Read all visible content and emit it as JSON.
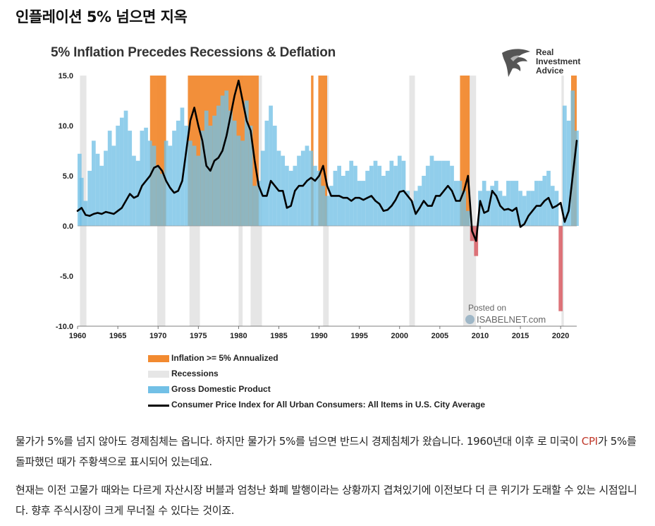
{
  "post": {
    "title": "인플레이션 5% 넘으면 지옥",
    "paragraph1": {
      "before": "물가가 5%를 넘지 않아도 경제침체는 옵니다. 하지만 물가가 5%를 넘으면 반드시 경제침체가 왔습니다. 1960년대 이후 로 미국이 ",
      "link": "CPI",
      "after": "가 5%를 돌파했던 때가 주황색으로 표시되어 있는데요."
    },
    "paragraph2": "현재는 이전 고물가 때와는 다르게 자산시장 버블과 엄청난 화폐 발행이라는 상황까지 겹쳐있기에 이전보다 더 큰 위기가 도래할 수 있는 시점입니다. 향후 주식시장이 크게 무너질 수 있다는 것이죠."
  },
  "brand": {
    "line1": "Real",
    "line2": "Investment",
    "line3": "Advice",
    "icon": "eagle-icon"
  },
  "watermark": {
    "posted": "Posted on",
    "site": "ISABELNET.com"
  },
  "colors": {
    "inflation": "#f28a30",
    "recession": "#e6e6e6",
    "gdp": "#72c0e6",
    "gdp_negative": "#d9646a",
    "cpi": "#000000",
    "zero_line": "#9a9a9a"
  },
  "chart_data": {
    "type": "area",
    "title": "5% Inflation Precedes Recessions & Deflation",
    "xlabel": "",
    "ylabel": "",
    "xlim": [
      1960,
      2022
    ],
    "ylim": [
      -10,
      15
    ],
    "xticks": [
      1960,
      1965,
      1970,
      1975,
      1980,
      1985,
      1990,
      1995,
      2000,
      2005,
      2010,
      2015,
      2020
    ],
    "yticks": [
      15,
      10,
      5,
      0,
      -5,
      -10
    ],
    "ytick_labels": [
      "15.0",
      "10.0",
      "5.0",
      "0.0",
      "-5.0",
      "-10.0"
    ],
    "grid": false,
    "legend_position": "bottom",
    "legend": [
      {
        "label": "Inflation >= 5% Annualized",
        "kind": "bar",
        "color": "#f28a30"
      },
      {
        "label": "Recessions",
        "kind": "bar",
        "color": "#e6e6e6"
      },
      {
        "label": "Gross Domestic Product",
        "kind": "bar",
        "color": "#72c0e6"
      },
      {
        "label": "Consumer Price Index for All Urban Consumers: All Items in U.S. City Average",
        "kind": "line",
        "color": "#000000"
      }
    ],
    "recessions": [
      [
        1960.3,
        1961.1
      ],
      [
        1969.9,
        1970.9
      ],
      [
        1973.9,
        1975.2
      ],
      [
        1980.0,
        1980.5
      ],
      [
        1981.5,
        1982.9
      ],
      [
        1990.5,
        1991.2
      ],
      [
        2001.2,
        2001.9
      ],
      [
        2007.9,
        2009.5
      ],
      [
        2020.1,
        2020.4
      ]
    ],
    "inflation_periods": [
      [
        1969.0,
        1971.0
      ],
      [
        1973.7,
        1982.5
      ],
      [
        1989.0,
        1989.3
      ],
      [
        1989.9,
        1991.0
      ],
      [
        2007.5,
        2008.7
      ],
      [
        2021.3,
        2022.0
      ]
    ],
    "series": [
      {
        "name": "Gross Domestic Product",
        "type": "area",
        "x": [
          1960,
          1960.5,
          1961,
          1961.5,
          1962,
          1962.5,
          1963,
          1963.5,
          1964,
          1964.5,
          1965,
          1965.5,
          1966,
          1966.5,
          1967,
          1967.5,
          1968,
          1968.5,
          1969,
          1969.5,
          1970,
          1970.5,
          1971,
          1971.5,
          1972,
          1972.5,
          1973,
          1973.5,
          1974,
          1974.5,
          1975,
          1975.5,
          1976,
          1976.5,
          1977,
          1977.5,
          1978,
          1978.5,
          1979,
          1979.5,
          1980,
          1980.5,
          1981,
          1981.5,
          1982,
          1982.5,
          1983,
          1983.5,
          1984,
          1984.5,
          1985,
          1985.5,
          1986,
          1986.5,
          1987,
          1987.5,
          1988,
          1988.5,
          1989,
          1989.5,
          1990,
          1990.5,
          1991,
          1991.5,
          1992,
          1992.5,
          1993,
          1993.5,
          1994,
          1994.5,
          1995,
          1995.5,
          1996,
          1996.5,
          1997,
          1997.5,
          1998,
          1998.5,
          1999,
          1999.5,
          2000,
          2000.5,
          2001,
          2001.5,
          2002,
          2002.5,
          2003,
          2003.5,
          2004,
          2004.5,
          2005,
          2005.5,
          2006,
          2006.5,
          2007,
          2007.5,
          2008,
          2008.5,
          2009,
          2009.5,
          2010,
          2010.5,
          2011,
          2011.5,
          2012,
          2012.5,
          2013,
          2013.5,
          2014,
          2014.5,
          2015,
          2015.5,
          2016,
          2016.5,
          2017,
          2017.5,
          2018,
          2018.5,
          2019,
          2019.5,
          2020,
          2020.5,
          2021,
          2021.5,
          2022
        ],
        "values": [
          7.2,
          4.8,
          2.5,
          5.5,
          8.5,
          7.2,
          6.0,
          7.5,
          9.5,
          8.0,
          10.0,
          10.8,
          11.5,
          9.5,
          7.0,
          6.5,
          9.5,
          9.8,
          8.5,
          8.0,
          6.0,
          5.2,
          8.5,
          8.0,
          9.5,
          10.5,
          11.8,
          10.0,
          8.5,
          8.0,
          7.0,
          9.5,
          11.5,
          10.0,
          11.0,
          12.0,
          13.0,
          13.5,
          11.5,
          10.5,
          9.0,
          8.5,
          12.5,
          10.0,
          4.0,
          4.5,
          7.5,
          10.5,
          12.0,
          10.0,
          7.5,
          7.0,
          6.0,
          5.5,
          6.0,
          7.0,
          7.5,
          8.0,
          7.5,
          6.0,
          5.5,
          4.0,
          3.0,
          4.0,
          5.5,
          6.0,
          5.0,
          5.5,
          6.5,
          6.0,
          4.5,
          4.5,
          5.5,
          6.0,
          6.5,
          6.0,
          5.0,
          5.5,
          6.5,
          6.0,
          7.0,
          6.5,
          3.5,
          2.5,
          3.5,
          4.0,
          5.0,
          6.0,
          7.0,
          6.5,
          6.5,
          6.5,
          6.5,
          6.0,
          4.5,
          4.5,
          3.5,
          1.5,
          -1.5,
          -3.0,
          3.5,
          4.5,
          3.5,
          4.0,
          4.5,
          3.5,
          3.0,
          4.5,
          4.5,
          4.5,
          3.5,
          3.0,
          3.5,
          3.5,
          4.5,
          4.5,
          5.0,
          5.5,
          4.0,
          3.5,
          -8.5,
          12.0,
          10.5,
          13.5,
          9.5
        ]
      },
      {
        "name": "Consumer Price Index for All Urban Consumers: All Items in U.S. City Average",
        "type": "line",
        "x": [
          1960,
          1960.5,
          1961,
          1961.5,
          1962,
          1962.5,
          1963,
          1963.5,
          1964,
          1964.5,
          1965,
          1965.5,
          1966,
          1966.5,
          1967,
          1967.5,
          1968,
          1968.5,
          1969,
          1969.5,
          1970,
          1970.5,
          1971,
          1971.5,
          1972,
          1972.5,
          1973,
          1973.5,
          1974,
          1974.5,
          1975,
          1975.5,
          1976,
          1976.5,
          1977,
          1977.5,
          1978,
          1978.5,
          1979,
          1979.5,
          1980,
          1980.5,
          1981,
          1981.5,
          1982,
          1982.5,
          1983,
          1983.5,
          1984,
          1984.5,
          1985,
          1985.5,
          1986,
          1986.5,
          1987,
          1987.5,
          1988,
          1988.5,
          1989,
          1989.5,
          1990,
          1990.5,
          1991,
          1991.5,
          1992,
          1992.5,
          1993,
          1993.5,
          1994,
          1994.5,
          1995,
          1995.5,
          1996,
          1996.5,
          1997,
          1997.5,
          1998,
          1998.5,
          1999,
          1999.5,
          2000,
          2000.5,
          2001,
          2001.5,
          2002,
          2002.5,
          2003,
          2003.5,
          2004,
          2004.5,
          2005,
          2005.5,
          2006,
          2006.5,
          2007,
          2007.5,
          2008,
          2008.5,
          2009,
          2009.5,
          2010,
          2010.5,
          2011,
          2011.5,
          2012,
          2012.5,
          2013,
          2013.5,
          2014,
          2014.5,
          2015,
          2015.5,
          2016,
          2016.5,
          2017,
          2017.5,
          2018,
          2018.5,
          2019,
          2019.5,
          2020,
          2020.5,
          2021,
          2021.5,
          2022
        ],
        "values": [
          1.5,
          1.8,
          1.1,
          1.0,
          1.2,
          1.3,
          1.2,
          1.4,
          1.3,
          1.2,
          1.5,
          1.8,
          2.5,
          3.2,
          2.8,
          3.0,
          4.0,
          4.5,
          5.0,
          5.8,
          6.0,
          5.5,
          4.5,
          3.8,
          3.3,
          3.5,
          4.5,
          7.5,
          10.5,
          11.8,
          10.0,
          8.5,
          6.0,
          5.5,
          6.5,
          6.8,
          7.5,
          9.0,
          11.0,
          13.0,
          14.5,
          12.5,
          10.5,
          9.5,
          6.5,
          4.0,
          3.0,
          3.0,
          4.5,
          4.0,
          3.5,
          3.5,
          1.8,
          2.0,
          3.5,
          4.0,
          4.0,
          4.5,
          4.8,
          4.5,
          5.0,
          6.0,
          4.0,
          3.0,
          3.0,
          3.0,
          2.8,
          2.8,
          2.5,
          2.8,
          2.8,
          2.6,
          2.8,
          3.0,
          2.5,
          2.2,
          1.5,
          1.6,
          2.0,
          2.6,
          3.4,
          3.5,
          3.0,
          2.5,
          1.2,
          1.8,
          2.5,
          2.0,
          2.0,
          3.0,
          3.0,
          3.5,
          4.0,
          3.5,
          2.5,
          2.5,
          3.5,
          5.0,
          -0.5,
          -1.5,
          2.5,
          1.3,
          1.5,
          3.5,
          3.0,
          2.0,
          1.6,
          1.7,
          1.5,
          1.8,
          -0.1,
          0.2,
          1.0,
          1.5,
          2.0,
          2.0,
          2.5,
          2.8,
          1.8,
          2.0,
          2.3,
          0.4,
          1.5,
          5.0,
          8.5
        ]
      }
    ]
  }
}
